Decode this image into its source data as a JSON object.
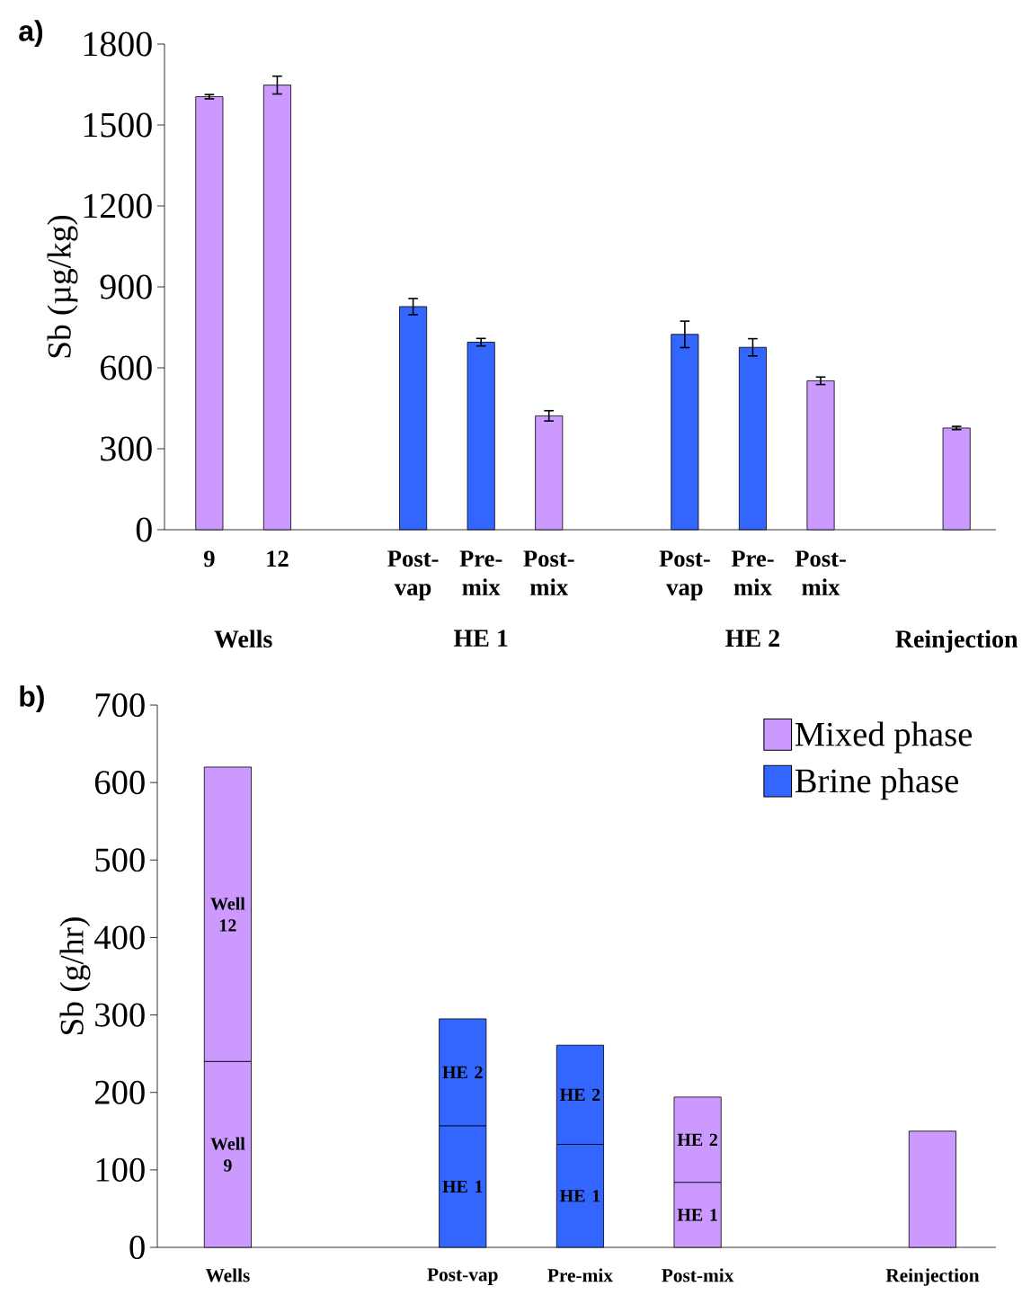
{
  "chart_data": [
    {
      "type": "bar",
      "title": "a)",
      "ylabel": "Sb (µg/kg)",
      "categories": [
        "9",
        "12",
        null,
        "Post-vap",
        "Pre-mix",
        "Post-mix",
        null,
        "Post-vap",
        "Pre-mix",
        "Post-mix",
        null,
        null
      ],
      "values": [
        1605,
        1648,
        null,
        827,
        695,
        422,
        null,
        724,
        676,
        552,
        null,
        377
      ],
      "colors": [
        "#cc99ff",
        "#cc99ff",
        null,
        "#3366ff",
        "#3366ff",
        "#cc99ff",
        null,
        "#3366ff",
        "#3366ff",
        "#cc99ff",
        null,
        "#cc99ff"
      ],
      "errors": [
        8,
        33,
        null,
        30,
        14,
        19,
        null,
        49,
        32,
        14,
        null,
        6
      ],
      "ylim": [
        0,
        1800
      ],
      "yticks": [
        0,
        300,
        600,
        900,
        1200,
        1500,
        1800
      ],
      "annotations": [
        "Wells",
        "HE 1",
        "HE 2",
        "Reinjection"
      ]
    },
    {
      "type": "bar",
      "title": "b)",
      "ylabel": "Sb (g/hr)",
      "stacked": true,
      "categories": [
        "Wells",
        null,
        "Post-vap",
        "Pre-mix",
        "Post-mix",
        null,
        "Reinjection"
      ],
      "series": [
        {
          "name": "Mixed phase",
          "color": "#cc99ff",
          "values": [
            240,
            null,
            null,
            null,
            84,
            null,
            150
          ]
        },
        {
          "name": "Brine phase",
          "color": "#3366ff",
          "values": [
            null,
            null,
            157,
            133,
            null,
            null,
            null
          ]
        },
        {
          "color": "#cc99ff",
          "values": [
            380,
            null,
            null,
            null,
            110,
            null,
            null
          ]
        },
        {
          "color": "#3366ff",
          "values": [
            null,
            null,
            138,
            128,
            null,
            null,
            null
          ]
        }
      ],
      "ylim": [
        0,
        700
      ],
      "yticks": [
        0,
        100,
        200,
        300,
        400,
        500,
        600,
        700
      ],
      "legend": "top right",
      "annotations": [
        "Well 9",
        "Well 12",
        "HE 1",
        "HE 2",
        "HE 1",
        "HE 2",
        "HE 1",
        "HE 2"
      ]
    }
  ]
}
